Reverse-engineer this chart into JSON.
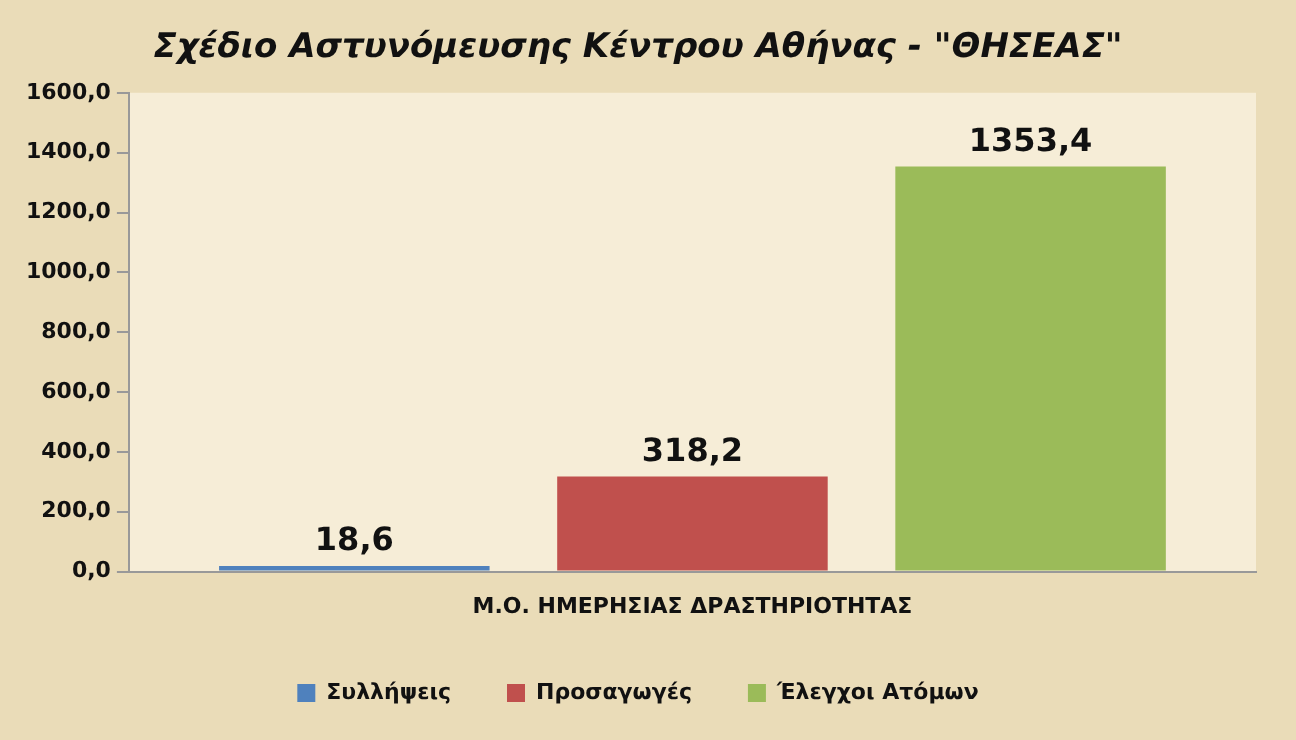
{
  "chart_data": {
    "type": "bar",
    "title": "Σχέδιο Αστυνόμευσης Κέντρου Αθήνας - \"ΘΗΣΕΑΣ\"",
    "categories": [
      "Μ.Ο. ΗΜΕΡΗΣΙΑΣ ΔΡΑΣΤΗΡΙΟΤΗΤΑΣ"
    ],
    "series": [
      {
        "name": "Συλλήψεις",
        "color": "#4f81bd",
        "values": [
          18.6
        ],
        "value_labels": [
          "18,6"
        ]
      },
      {
        "name": "Προσαγωγές",
        "color": "#c0504d",
        "values": [
          318.2
        ],
        "value_labels": [
          "318,2"
        ]
      },
      {
        "name": "Έλεγχοι Ατόμων",
        "color": "#9bbb59",
        "values": [
          1353.4
        ],
        "value_labels": [
          "1353,4"
        ]
      }
    ],
    "ylim": [
      0,
      1600
    ],
    "yticks": [
      {
        "value": 0,
        "label": "0,0"
      },
      {
        "value": 200,
        "label": "200,0"
      },
      {
        "value": 400,
        "label": "400,0"
      },
      {
        "value": 600,
        "label": "600,0"
      },
      {
        "value": 800,
        "label": "800,0"
      },
      {
        "value": 1000,
        "label": "1000,0"
      },
      {
        "value": 1200,
        "label": "1200,0"
      },
      {
        "value": 1400,
        "label": "1400,0"
      },
      {
        "value": 1600,
        "label": "1600,0"
      }
    ],
    "grid": false,
    "legend": "bottom"
  }
}
